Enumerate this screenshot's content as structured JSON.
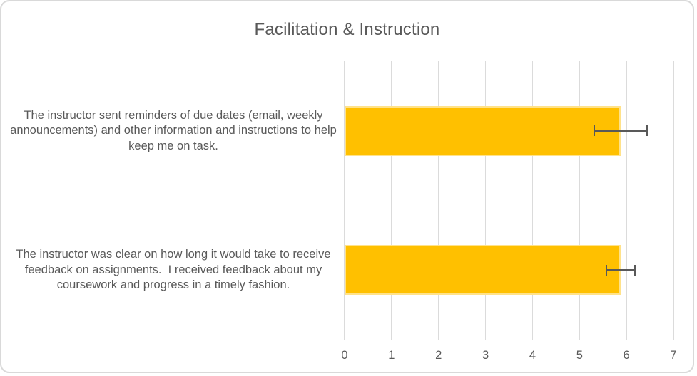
{
  "chart_data": {
    "type": "bar",
    "orientation": "horizontal",
    "title": "Facilitation & Instruction",
    "categories": [
      "The instructor sent reminders of due dates (email, weekly announcements) and other information and instructions to help keep me on task.",
      "The instructor was clear on how long it would take to receive feedback on assignments.  I received feedback about my coursework and progress in a timely fashion."
    ],
    "values": [
      5.88,
      5.88
    ],
    "error_bars": [
      {
        "low": 5.3,
        "high": 6.45
      },
      {
        "low": 5.55,
        "high": 6.2
      }
    ],
    "xlabel": "",
    "ylabel": "",
    "xlim": [
      0,
      7
    ],
    "xticks": [
      0,
      1,
      2,
      3,
      4,
      5,
      6,
      7
    ],
    "grid": "vertical-only",
    "legend": "none",
    "colors": {
      "bar_fill": "#FFC000",
      "bar_edge": "#FFE28A",
      "error_bar": "#595959",
      "text": "#595959",
      "gridline": "#DBDBDB",
      "card_border": "#D9D9D9"
    }
  }
}
